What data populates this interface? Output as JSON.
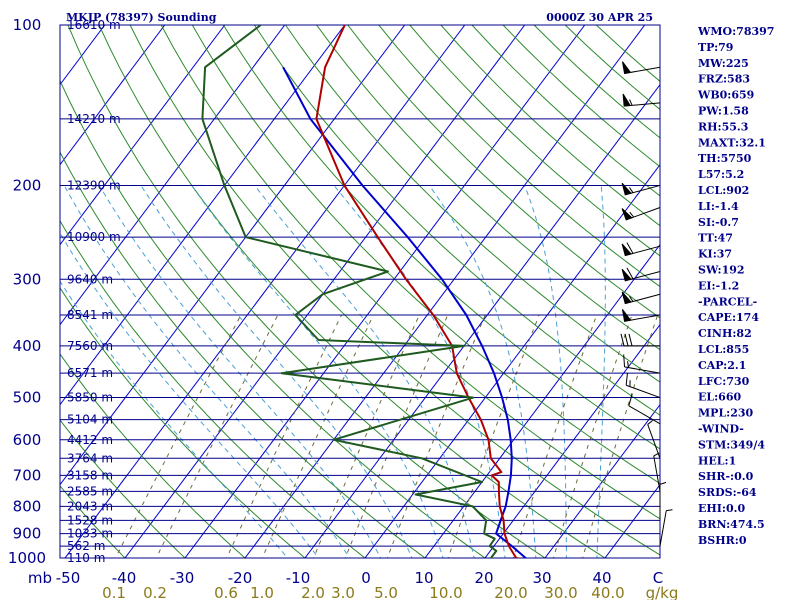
{
  "header": {
    "station": "MKJP (78397) Sounding",
    "time": "0000Z 30 APR 25"
  },
  "colors": {
    "isobar": "#00008b",
    "isotherm": "#0000cd",
    "dry_adiabat": "#2e8b2e",
    "moist_adiabat": "#4aa0d6",
    "mixing_ratio": "#6b6b3a",
    "temperature": "#b00000",
    "dewpoint": "#1f5a1f",
    "parcel": "#0000cd",
    "label": "#00008b"
  },
  "indices": [
    "WMO:78397",
    "TP:79",
    "MW:225",
    "FRZ:583",
    "WB0:659",
    "PW:1.58",
    "RH:55.3",
    "MAXT:32.1",
    "TH:5750",
    "L57:5.2",
    "LCL:902",
    "LI:-1.4",
    "SI:-0.7",
    "TT:47",
    "KI:37",
    "SW:192",
    "EI:-1.2",
    "-PARCEL-",
    "CAPE:174",
    "CINH:82",
    "LCL:855",
    "CAP:2.1",
    "LFC:730",
    "EL:660",
    "MPL:230",
    "-WIND-",
    "STM:349/4",
    "HEL:1",
    "SHR-:0.0",
    "SRDS:-64",
    "EHI:0.0",
    "BRN:474.5",
    "BSHR:0"
  ],
  "chart_data": {
    "type": "line",
    "title": "MKJP (78397) Sounding",
    "pressure_levels": [
      {
        "p": 100,
        "label": "100",
        "height": "16610 m"
      },
      {
        "p": 150,
        "label": "",
        "height": "14210 m"
      },
      {
        "p": 200,
        "label": "200",
        "height": "12390 m"
      },
      {
        "p": 250,
        "label": "",
        "height": "10900 m"
      },
      {
        "p": 300,
        "label": "300",
        "height": "9640 m"
      },
      {
        "p": 350,
        "label": "",
        "height": "8541 m"
      },
      {
        "p": 400,
        "label": "400",
        "height": "7560 m"
      },
      {
        "p": 450,
        "label": "",
        "height": "6571 m"
      },
      {
        "p": 500,
        "label": "500",
        "height": "5850 m"
      },
      {
        "p": 550,
        "label": "",
        "height": "5104 m"
      },
      {
        "p": 600,
        "label": "600",
        "height": "4412 m"
      },
      {
        "p": 650,
        "label": "",
        "height": "3764 m"
      },
      {
        "p": 700,
        "label": "700",
        "height": "3158 m"
      },
      {
        "p": 750,
        "label": "",
        "height": "2585 m"
      },
      {
        "p": 800,
        "label": "800",
        "height": "2043 m"
      },
      {
        "p": 850,
        "label": "",
        "height": "1528 m"
      },
      {
        "p": 900,
        "label": "900",
        "height": "1033 m"
      },
      {
        "p": 950,
        "label": "",
        "height": "562 m"
      },
      {
        "p": 1000,
        "label": "1000",
        "height": "110 m"
      }
    ],
    "temperature_ticks": [
      "mb",
      "-50",
      "-40",
      "-30",
      "-20",
      "-10",
      "0",
      "10",
      "20",
      "30",
      "40",
      "C"
    ],
    "mixing_ratio_ticks": [
      "0.1",
      "0.2",
      "0.6",
      "1.0",
      "2.0",
      "3.0",
      "5.0",
      "10.0",
      "20.0",
      "30.0",
      "40.0",
      "g/kg"
    ],
    "temperature": [
      {
        "p": 1010,
        "t": 27.5
      },
      {
        "p": 1000,
        "t": 25.2
      },
      {
        "p": 950,
        "t": 22.5
      },
      {
        "p": 900,
        "t": 20.2
      },
      {
        "p": 850,
        "t": 18.4
      },
      {
        "p": 800,
        "t": 16.0
      },
      {
        "p": 750,
        "t": 14.0
      },
      {
        "p": 720,
        "t": 12.8
      },
      {
        "p": 700,
        "t": 10.8
      },
      {
        "p": 690,
        "t": 12.0
      },
      {
        "p": 650,
        "t": 8.5
      },
      {
        "p": 600,
        "t": 5.8
      },
      {
        "p": 550,
        "t": 2.0
      },
      {
        "p": 500,
        "t": -2.8
      },
      {
        "p": 450,
        "t": -7.8
      },
      {
        "p": 400,
        "t": -12.0
      },
      {
        "p": 350,
        "t": -19.0
      },
      {
        "p": 300,
        "t": -28.0
      },
      {
        "p": 250,
        "t": -38.0
      },
      {
        "p": 200,
        "t": -50.0
      },
      {
        "p": 150,
        "t": -63.0
      },
      {
        "p": 120,
        "t": -68.0
      },
      {
        "p": 100,
        "t": -70.0
      }
    ],
    "dewpoint": [
      {
        "p": 1010,
        "t": 22.5
      },
      {
        "p": 1000,
        "t": 21.0
      },
      {
        "p": 970,
        "t": 21.0
      },
      {
        "p": 950,
        "t": 19.3
      },
      {
        "p": 920,
        "t": 19.2
      },
      {
        "p": 900,
        "t": 16.8
      },
      {
        "p": 850,
        "t": 15.5
      },
      {
        "p": 800,
        "t": 11.5
      },
      {
        "p": 760,
        "t": 0.5
      },
      {
        "p": 720,
        "t": 10.0
      },
      {
        "p": 650,
        "t": -3.0
      },
      {
        "p": 600,
        "t": -20.0
      },
      {
        "p": 500,
        "t": -2.0
      },
      {
        "p": 450,
        "t": -37.0
      },
      {
        "p": 400,
        "t": -10.0
      },
      {
        "p": 390,
        "t": -35.0
      },
      {
        "p": 350,
        "t": -42.0
      },
      {
        "p": 320,
        "t": -40.0
      },
      {
        "p": 290,
        "t": -32.0
      },
      {
        "p": 250,
        "t": -60.0
      },
      {
        "p": 200,
        "t": -70.0
      },
      {
        "p": 150,
        "t": -82.0
      },
      {
        "p": 120,
        "t": -88.0
      },
      {
        "p": 100,
        "t": -84.0
      }
    ],
    "parcel": [
      {
        "p": 1010,
        "t": 27.5
      },
      {
        "p": 950,
        "t": 23.0
      },
      {
        "p": 900,
        "t": 18.8
      },
      {
        "p": 855,
        "t": 18.0
      },
      {
        "p": 800,
        "t": 17.0
      },
      {
        "p": 750,
        "t": 15.6
      },
      {
        "p": 700,
        "t": 14.0
      },
      {
        "p": 650,
        "t": 12.0
      },
      {
        "p": 600,
        "t": 9.5
      },
      {
        "p": 550,
        "t": 6.5
      },
      {
        "p": 500,
        "t": 2.8
      },
      {
        "p": 450,
        "t": -1.6
      },
      {
        "p": 400,
        "t": -7.0
      },
      {
        "p": 350,
        "t": -13.5
      },
      {
        "p": 300,
        "t": -22.0
      },
      {
        "p": 250,
        "t": -33.0
      },
      {
        "p": 200,
        "t": -47.0
      },
      {
        "p": 150,
        "t": -64.0
      },
      {
        "p": 120,
        "t": -75.0
      }
    ],
    "wind_barbs": [
      {
        "p": 120,
        "dir": 260,
        "spd": 50
      },
      {
        "p": 140,
        "dir": 265,
        "spd": 55
      },
      {
        "p": 200,
        "dir": 255,
        "spd": 55
      },
      {
        "p": 220,
        "dir": 250,
        "spd": 55
      },
      {
        "p": 260,
        "dir": 255,
        "spd": 60
      },
      {
        "p": 290,
        "dir": 255,
        "spd": 60
      },
      {
        "p": 320,
        "dir": 255,
        "spd": 55
      },
      {
        "p": 350,
        "dir": 260,
        "spd": 50
      },
      {
        "p": 400,
        "dir": 270,
        "spd": 30
      },
      {
        "p": 450,
        "dir": 280,
        "spd": 15
      },
      {
        "p": 500,
        "dir": 290,
        "spd": 15
      },
      {
        "p": 560,
        "dir": 300,
        "spd": 10
      },
      {
        "p": 650,
        "dir": 340,
        "spd": 5
      },
      {
        "p": 750,
        "dir": 350,
        "spd": 5
      },
      {
        "p": 850,
        "dir": 360,
        "spd": 5
      },
      {
        "p": 950,
        "dir": 10,
        "spd": 5
      }
    ]
  }
}
